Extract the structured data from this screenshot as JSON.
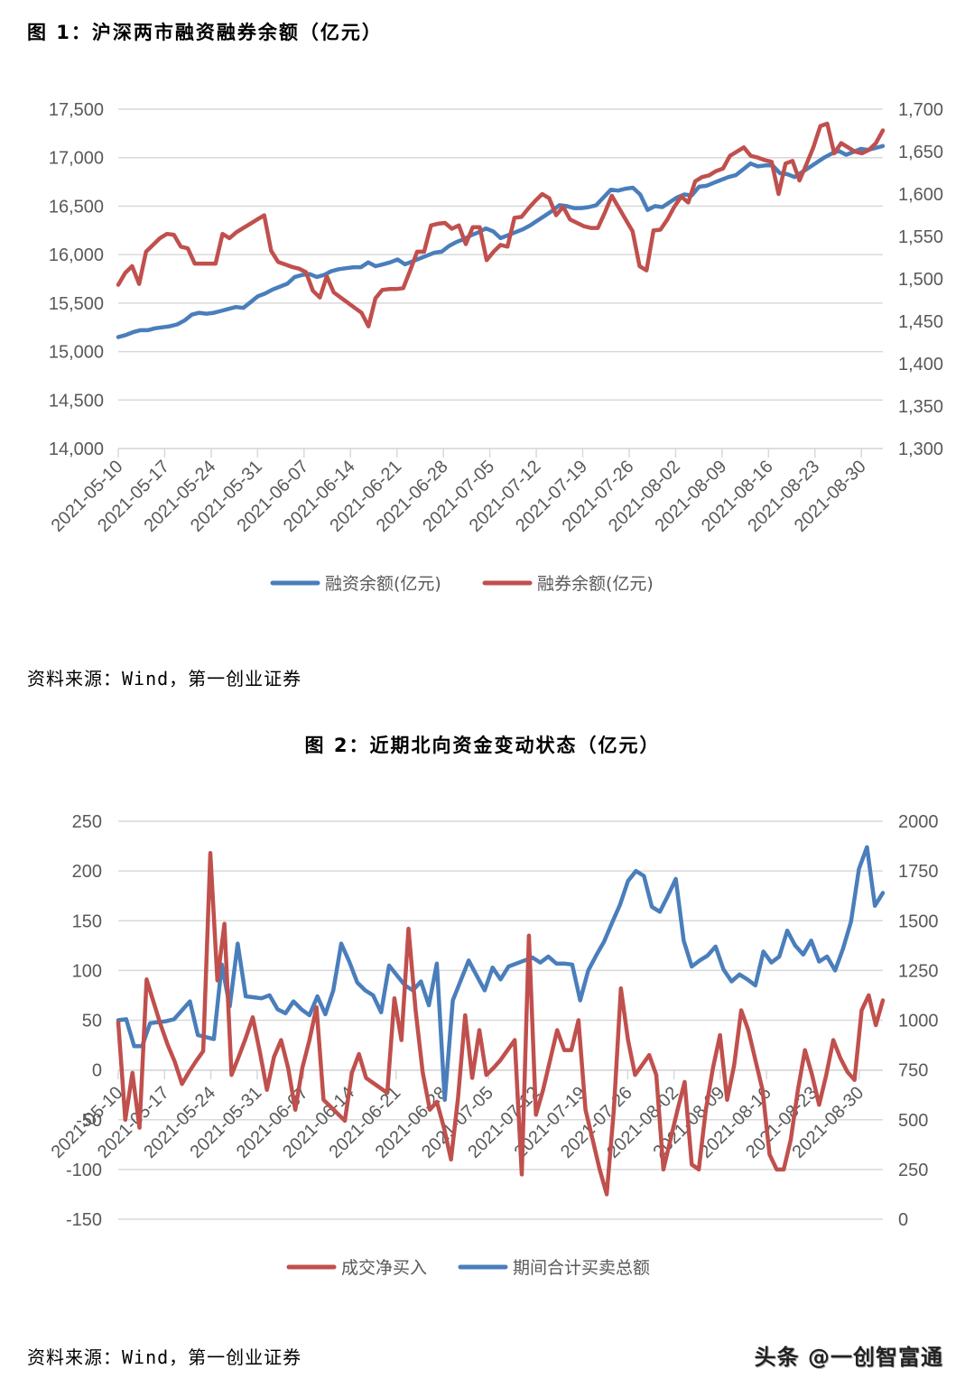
{
  "figure1": {
    "title": "图 1：沪深两市融资融券余额（亿元）",
    "source": "资料来源：Wind，第一创业证券"
  },
  "figure2": {
    "title": "图 2：近期北向资金变动状态（亿元）",
    "source": "资料来源：Wind，第一创业证券"
  },
  "watermark": "头条 @一创智富通",
  "colors": {
    "blue": "#4a7ebb",
    "red": "#c0504d",
    "grid": "#d9d9d9",
    "axis_text": "#595959"
  },
  "chart_data": [
    {
      "type": "line",
      "title": "图 1：沪深两市融资融券余额（亿元）",
      "xlabel": "",
      "ylabel": "",
      "x_tick_labels": [
        "2021-05-10",
        "2021-05-17",
        "2021-05-24",
        "2021-05-31",
        "2021-06-07",
        "2021-06-14",
        "2021-06-21",
        "2021-06-28",
        "2021-07-05",
        "2021-07-12",
        "2021-07-19",
        "2021-07-26",
        "2021-08-02",
        "2021-08-09",
        "2021-08-16",
        "2021-08-23",
        "2021-08-30"
      ],
      "y_left": {
        "ticks": [
          "14,000",
          "14,500",
          "15,000",
          "15,500",
          "16,000",
          "16,500",
          "17,000",
          "17,500"
        ],
        "ylim": [
          14000,
          17500
        ]
      },
      "y_right": {
        "ticks": [
          "1,300",
          "1,350",
          "1,400",
          "1,450",
          "1,500",
          "1,550",
          "1,600",
          "1,650",
          "1,700"
        ],
        "ylim": [
          1300,
          1700
        ]
      },
      "grid": true,
      "legend_position": "bottom",
      "series": [
        {
          "name": "融资余额(亿元)",
          "axis": "left",
          "color": "#4a7ebb",
          "values": [
            15150,
            15170,
            15200,
            15220,
            15220,
            15240,
            15250,
            15260,
            15280,
            15320,
            15380,
            15400,
            15390,
            15400,
            15420,
            15440,
            15460,
            15450,
            15510,
            15570,
            15600,
            15640,
            15670,
            15700,
            15770,
            15790,
            15800,
            15770,
            15790,
            15830,
            15850,
            15860,
            15870,
            15870,
            15920,
            15880,
            15900,
            15920,
            15950,
            15900,
            15930,
            15960,
            15990,
            16020,
            16030,
            16090,
            16130,
            16160,
            16200,
            16230,
            16270,
            16240,
            16170,
            16200,
            16230,
            16260,
            16300,
            16350,
            16400,
            16450,
            16510,
            16500,
            16480,
            16480,
            16490,
            16510,
            16590,
            16670,
            16660,
            16680,
            16690,
            16620,
            16460,
            16500,
            16490,
            16540,
            16590,
            16620,
            16610,
            16700,
            16710,
            16740,
            16770,
            16800,
            16820,
            16880,
            16940,
            16910,
            16920,
            16920,
            16840,
            16830,
            16800,
            16850,
            16900,
            16950,
            17000,
            17040,
            17070,
            17030,
            17060,
            17090,
            17080,
            17100,
            17120
          ]
        },
        {
          "name": "融券余额(亿元)",
          "axis": "right",
          "color": "#c0504d",
          "values": [
            1493,
            1507,
            1515,
            1494,
            1532,
            1540,
            1548,
            1553,
            1552,
            1538,
            1536,
            1518,
            1518,
            1518,
            1518,
            1553,
            1548,
            1555,
            1560,
            1565,
            1570,
            1575,
            1533,
            1520,
            1517,
            1514,
            1512,
            1508,
            1486,
            1478,
            1503,
            1484,
            1478,
            1472,
            1466,
            1460,
            1444,
            1477,
            1487,
            1488,
            1488,
            1489,
            1510,
            1532,
            1532,
            1563,
            1565,
            1566,
            1559,
            1563,
            1541,
            1561,
            1561,
            1522,
            1532,
            1540,
            1538,
            1572,
            1573,
            1583,
            1592,
            1600,
            1595,
            1575,
            1585,
            1570,
            1566,
            1562,
            1560,
            1560,
            1578,
            1598,
            1584,
            1570,
            1556,
            1515,
            1510,
            1557,
            1558,
            1570,
            1585,
            1597,
            1590,
            1615,
            1620,
            1622,
            1627,
            1630,
            1645,
            1650,
            1655,
            1645,
            1643,
            1640,
            1638,
            1600,
            1636,
            1639,
            1616,
            1635,
            1655,
            1680,
            1683,
            1648,
            1660,
            1655,
            1650,
            1648,
            1652,
            1660,
            1675
          ]
        }
      ]
    },
    {
      "type": "line",
      "title": "图 2：近期北向资金变动状态（亿元）",
      "xlabel": "",
      "ylabel": "",
      "x_tick_labels": [
        "2021-05-10",
        "2021-05-17",
        "2021-05-24",
        "2021-05-31",
        "2021-06-07",
        "2021-06-14",
        "2021-06-21",
        "2021-06-28",
        "2021-07-05",
        "2021-07-12",
        "2021-07-19",
        "2021-07-26",
        "2021-08-02",
        "2021-08-09",
        "2021-08-16",
        "2021-08-23",
        "2021-08-30"
      ],
      "y_left": {
        "ticks": [
          "-150",
          "-100",
          "-50",
          "0",
          "50",
          "100",
          "150",
          "200",
          "250"
        ],
        "ylim": [
          -150,
          250
        ]
      },
      "y_right": {
        "ticks": [
          "0",
          "250",
          "500",
          "750",
          "1000",
          "1250",
          "1500",
          "1750",
          "2000"
        ],
        "ylim": [
          0,
          2000
        ]
      },
      "grid": true,
      "legend_position": "bottom",
      "series": [
        {
          "name": "成交净买入",
          "axis": "left",
          "color": "#c0504d",
          "values": [
            48,
            -50,
            -3,
            -58,
            91,
            68,
            45,
            25,
            8,
            -14,
            -2,
            9,
            19,
            218,
            90,
            147,
            -5,
            13,
            32,
            53,
            18,
            -20,
            13,
            30,
            2,
            -40,
            2,
            30,
            63,
            -30,
            -37,
            -44,
            -51,
            -3,
            16,
            -8,
            -13,
            -18,
            -23,
            72,
            30,
            142,
            60,
            -2,
            -40,
            -32,
            -58,
            -90,
            -28,
            55,
            -8,
            40,
            -5,
            2,
            10,
            20,
            30,
            -105,
            135,
            -45,
            -20,
            10,
            40,
            20,
            20,
            50,
            -40,
            -70,
            -100,
            -125,
            -40,
            82,
            30,
            -5,
            5,
            15,
            -5,
            -100,
            -70,
            -40,
            -12,
            -95,
            -100,
            -40,
            2,
            35,
            -30,
            5,
            60,
            40,
            10,
            -20,
            -85,
            -100,
            -100,
            -70,
            -20,
            20,
            -5,
            -35,
            -5,
            30,
            12,
            -2,
            -10,
            60,
            75,
            45,
            70
          ]
        },
        {
          "name": "期间合计买卖总额",
          "axis": "right",
          "color": "#4a7ebb",
          "values": [
            1000,
            1005,
            870,
            870,
            985,
            990,
            995,
            1005,
            1050,
            1095,
            925,
            915,
            905,
            1280,
            1070,
            1385,
            1120,
            1115,
            1110,
            1125,
            1055,
            1035,
            1095,
            1055,
            1025,
            1120,
            1030,
            1150,
            1385,
            1295,
            1190,
            1150,
            1125,
            1040,
            1275,
            1225,
            1175,
            1150,
            1195,
            1075,
            1285,
            600,
            1100,
            1200,
            1300,
            1225,
            1150,
            1265,
            1205,
            1270,
            1285,
            1300,
            1315,
            1290,
            1320,
            1285,
            1285,
            1280,
            1100,
            1250,
            1325,
            1395,
            1490,
            1580,
            1700,
            1750,
            1725,
            1570,
            1545,
            1625,
            1710,
            1400,
            1270,
            1300,
            1325,
            1370,
            1255,
            1195,
            1230,
            1205,
            1175,
            1345,
            1290,
            1320,
            1450,
            1375,
            1330,
            1400,
            1295,
            1320,
            1250,
            1360,
            1495,
            1760,
            1870,
            1575,
            1640
          ]
        }
      ]
    }
  ],
  "charts": {
    "c1": {
      "legend": [
        "融资余额(亿元)",
        "融券余额(亿元)"
      ]
    },
    "c2": {
      "legend": [
        "成交净买入",
        "期间合计买卖总额"
      ]
    }
  }
}
